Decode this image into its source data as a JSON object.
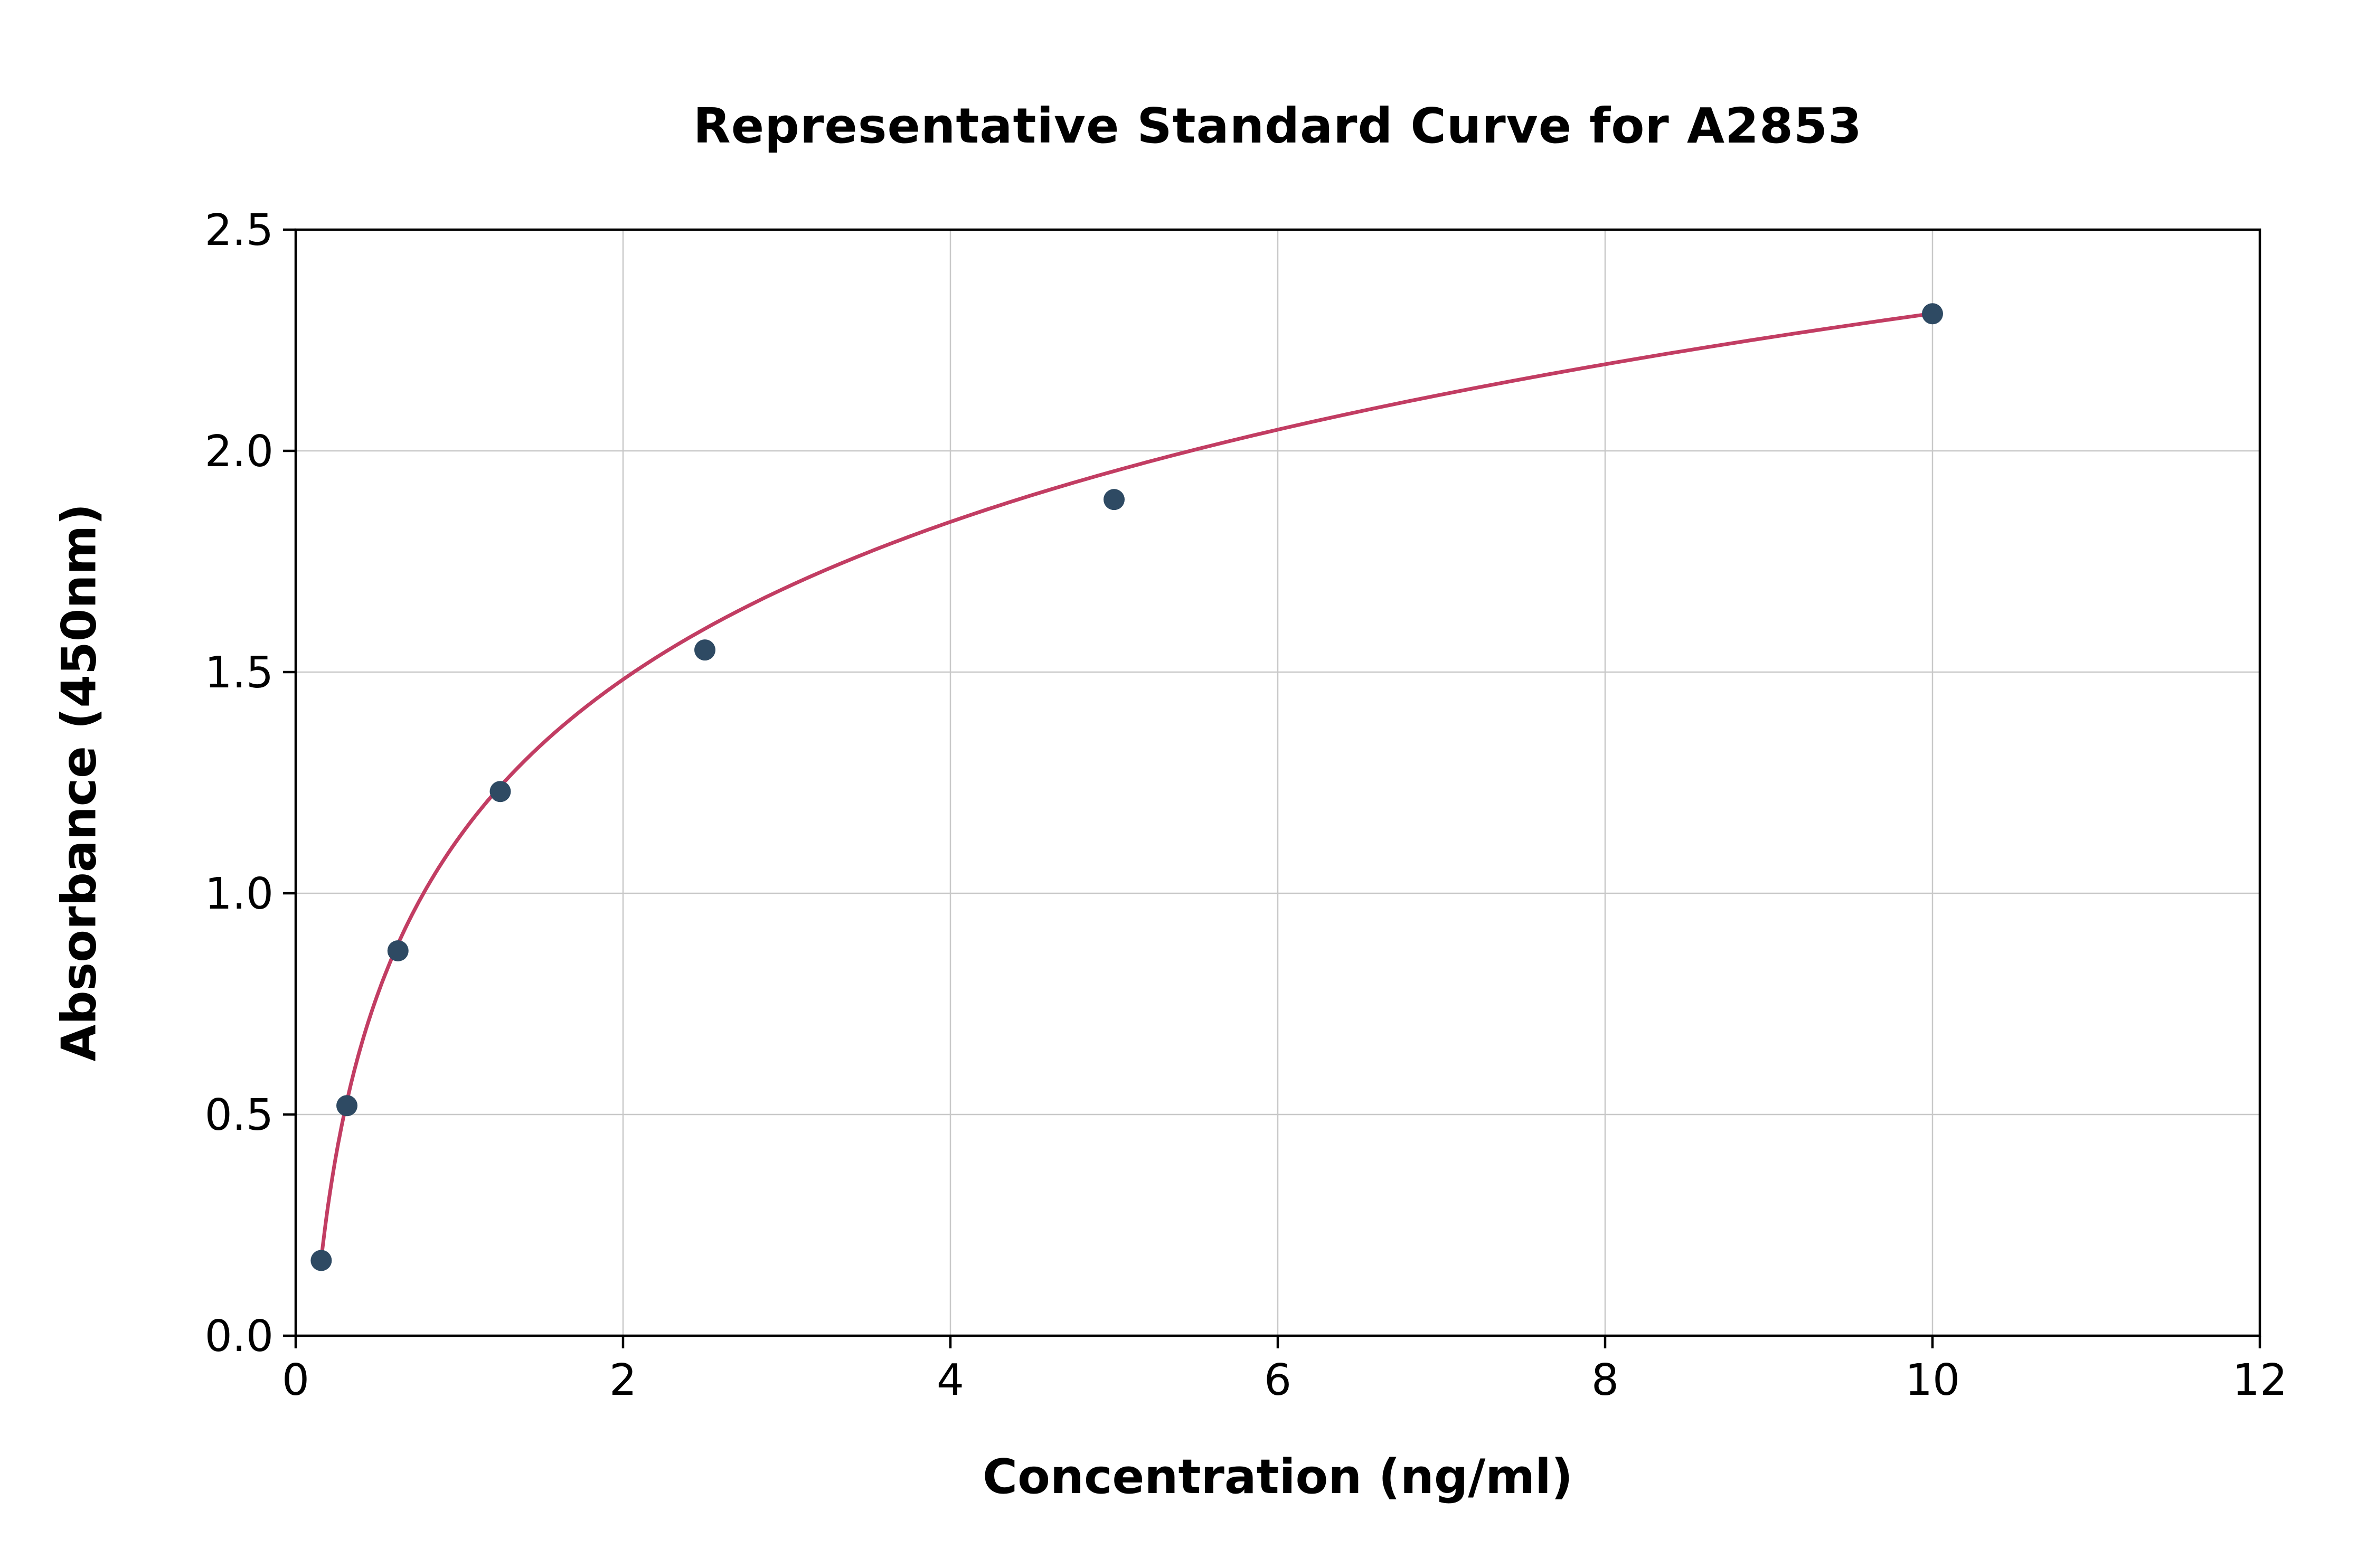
{
  "figure": {
    "title": "Representative Standard Curve for A2853",
    "xlabel": "Concentration (ng/ml)",
    "ylabel": "Absorbance (450nm)"
  },
  "chart_data": {
    "type": "scatter",
    "title": "Representative Standard Curve for A2853",
    "xlabel": "Concentration (ng/ml)",
    "ylabel": "Absorbance (450nm)",
    "xlim": [
      0,
      12
    ],
    "ylim": [
      0,
      2.5
    ],
    "grid": true,
    "x_ticks": [
      {
        "value": 0,
        "label": "0"
      },
      {
        "value": 2,
        "label": "2"
      },
      {
        "value": 4,
        "label": "4"
      },
      {
        "value": 6,
        "label": "6"
      },
      {
        "value": 8,
        "label": "8"
      },
      {
        "value": 10,
        "label": "10"
      },
      {
        "value": 12,
        "label": "12"
      }
    ],
    "y_ticks": [
      {
        "value": 0.0,
        "label": "0.0"
      },
      {
        "value": 0.5,
        "label": "0.5"
      },
      {
        "value": 1.0,
        "label": "1.0"
      },
      {
        "value": 1.5,
        "label": "1.5"
      },
      {
        "value": 2.0,
        "label": "2.0"
      },
      {
        "value": 2.5,
        "label": "2.5"
      }
    ],
    "points": [
      {
        "x": 0.156,
        "y": 0.17
      },
      {
        "x": 0.313,
        "y": 0.52
      },
      {
        "x": 0.625,
        "y": 0.87
      },
      {
        "x": 1.25,
        "y": 1.23
      },
      {
        "x": 2.5,
        "y": 1.55
      },
      {
        "x": 5.0,
        "y": 1.89
      },
      {
        "x": 10.0,
        "y": 2.31
      }
    ],
    "fit_curve": {
      "model": "y = a + b * ln(x)",
      "a": 1.127,
      "b": 0.514,
      "x_start": 0.156,
      "x_end": 10.0
    },
    "colors": {
      "point": "#2e4a63",
      "curve": "#c23d63",
      "grid": "#c8c8c8",
      "axis": "#000000",
      "background": "#ffffff"
    }
  }
}
